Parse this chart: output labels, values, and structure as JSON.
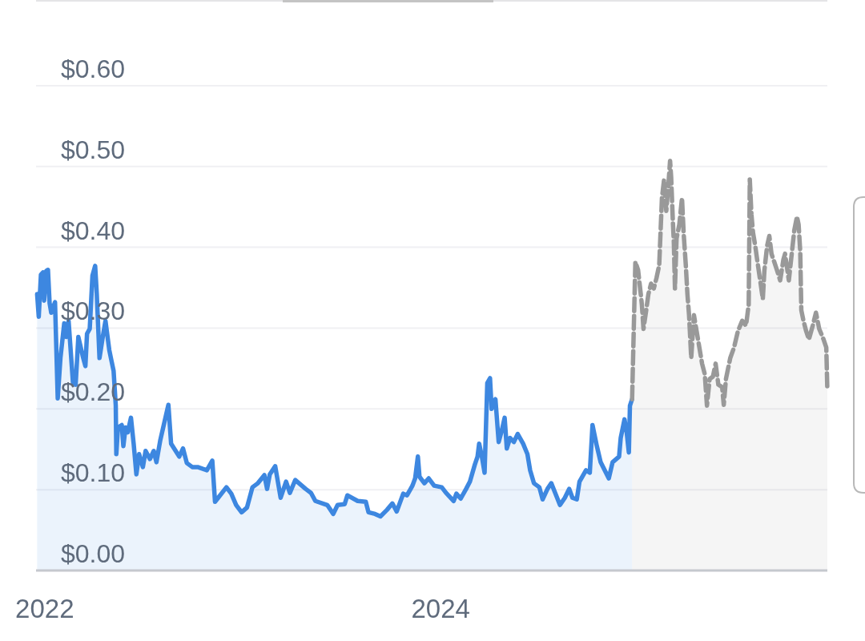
{
  "chart_data": {
    "type": "area",
    "xlim": [
      "2021-12-16",
      "2025-12-14"
    ],
    "xticks": [
      {
        "value": "2022-01-01",
        "label": "2022"
      },
      {
        "value": "2024-01-01",
        "label": "2024"
      }
    ],
    "ylim": [
      0,
      0.705
    ],
    "yticks": [
      {
        "value": 0,
        "label": "$0.00"
      },
      {
        "value": 0.1,
        "label": "$0.10"
      },
      {
        "value": 0.2,
        "label": "$0.20"
      },
      {
        "value": 0.3,
        "label": "$0.30"
      },
      {
        "value": 0.4,
        "label": "$0.40"
      },
      {
        "value": 0.5,
        "label": "$0.50"
      },
      {
        "value": 0.6,
        "label": "$0.60"
      }
    ],
    "grid": "y",
    "series": [
      {
        "color": "#3d87e0",
        "line_style": "solid",
        "x": [
          "2021-12-18",
          "2021-12-21",
          "2021-12-25",
          "2021-12-29",
          "2021-12-31",
          "2022-01-04",
          "2022-01-07",
          "2022-01-10",
          "2022-01-13",
          "2022-01-20",
          "2022-01-25",
          "2022-01-30",
          "2022-02-06",
          "2022-02-10",
          "2022-02-14",
          "2022-02-22",
          "2022-02-27",
          "2022-03-04",
          "2022-03-13",
          "2022-03-17",
          "2022-03-20",
          "2022-03-25",
          "2022-03-30",
          "2022-04-04",
          "2022-04-07",
          "2022-04-12",
          "2022-04-18",
          "2022-04-23",
          "2022-04-30",
          "2022-05-03",
          "2022-05-08",
          "2022-05-12",
          "2022-05-13",
          "2022-05-16",
          "2022-05-23",
          "2022-05-26",
          "2022-05-30",
          "2022-06-03",
          "2022-06-09",
          "2022-06-14",
          "2022-06-19",
          "2022-06-24",
          "2022-07-01",
          "2022-07-06",
          "2022-07-14",
          "2022-07-21",
          "2022-07-26",
          "2022-08-02",
          "2022-08-17",
          "2022-08-22",
          "2022-09-06",
          "2022-09-13",
          "2022-09-20",
          "2022-09-30",
          "2022-10-10",
          "2022-10-27",
          "2022-11-06",
          "2022-11-11",
          "2022-11-18",
          "2022-12-02",
          "2022-12-11",
          "2022-12-20",
          "2022-12-30",
          "2023-01-09",
          "2023-01-19",
          "2023-01-29",
          "2023-02-10",
          "2023-02-15",
          "2023-02-20",
          "2023-03-02",
          "2023-03-12",
          "2023-03-22",
          "2023-03-29",
          "2023-04-08",
          "2023-04-27",
          "2023-05-07",
          "2023-05-15",
          "2023-06-06",
          "2023-06-17",
          "2023-06-25",
          "2023-07-08",
          "2023-07-13",
          "2023-08-01",
          "2023-08-16",
          "2023-08-21",
          "2023-09-02",
          "2023-09-12",
          "2023-09-24",
          "2023-10-04",
          "2023-10-12",
          "2023-10-24",
          "2023-10-31",
          "2023-11-10",
          "2023-11-15",
          "2023-11-20",
          "2023-11-23",
          "2023-12-02",
          "2023-12-10",
          "2023-12-20",
          "2024-01-03",
          "2024-01-11",
          "2024-01-25",
          "2024-01-30",
          "2024-02-07",
          "2024-02-17",
          "2024-02-24",
          "2024-03-04",
          "2024-03-09",
          "2024-03-12",
          "2024-03-17",
          "2024-03-22",
          "2024-03-27",
          "2024-04-01",
          "2024-04-04",
          "2024-04-11",
          "2024-04-17",
          "2024-04-23",
          "2024-04-28",
          "2024-05-02",
          "2024-05-08",
          "2024-05-15",
          "2024-05-22",
          "2024-06-01",
          "2024-06-09",
          "2024-06-14",
          "2024-06-21",
          "2024-07-01",
          "2024-07-07",
          "2024-07-16",
          "2024-07-23",
          "2024-08-08",
          "2024-08-17",
          "2024-08-25",
          "2024-08-31",
          "2024-09-08",
          "2024-09-13",
          "2024-09-25",
          "2024-10-02",
          "2024-10-07",
          "2024-10-15",
          "2024-10-22",
          "2024-11-06",
          "2024-11-13",
          "2024-11-25",
          "2024-11-28",
          "2024-12-05",
          "2024-12-09",
          "2024-12-13",
          "2024-12-15",
          "2024-12-19"
        ],
        "values": [
          0.342,
          0.314,
          0.366,
          0.369,
          0.334,
          0.371,
          0.372,
          0.331,
          0.319,
          0.332,
          0.213,
          0.263,
          0.306,
          0.289,
          0.309,
          0.233,
          0.23,
          0.289,
          0.263,
          0.253,
          0.293,
          0.299,
          0.365,
          0.377,
          0.342,
          0.263,
          0.289,
          0.309,
          0.273,
          0.263,
          0.247,
          0.204,
          0.144,
          0.177,
          0.18,
          0.154,
          0.177,
          0.171,
          0.189,
          0.157,
          0.119,
          0.144,
          0.128,
          0.148,
          0.138,
          0.148,
          0.134,
          0.161,
          0.205,
          0.157,
          0.141,
          0.151,
          0.133,
          0.128,
          0.128,
          0.124,
          0.136,
          0.085,
          0.091,
          0.103,
          0.095,
          0.081,
          0.072,
          0.078,
          0.103,
          0.108,
          0.118,
          0.101,
          0.119,
          0.129,
          0.09,
          0.11,
          0.096,
          0.112,
          0.101,
          0.096,
          0.086,
          0.081,
          0.07,
          0.081,
          0.082,
          0.093,
          0.086,
          0.085,
          0.072,
          0.07,
          0.067,
          0.075,
          0.083,
          0.073,
          0.095,
          0.093,
          0.105,
          0.114,
          0.141,
          0.116,
          0.108,
          0.114,
          0.105,
          0.103,
          0.096,
          0.086,
          0.095,
          0.089,
          0.101,
          0.11,
          0.131,
          0.141,
          0.157,
          0.141,
          0.121,
          0.232,
          0.238,
          0.2,
          0.212,
          0.159,
          0.174,
          0.189,
          0.151,
          0.164,
          0.159,
          0.169,
          0.157,
          0.144,
          0.124,
          0.108,
          0.103,
          0.088,
          0.101,
          0.108,
          0.081,
          0.09,
          0.101,
          0.09,
          0.088,
          0.11,
          0.124,
          0.121,
          0.18,
          0.154,
          0.134,
          0.114,
          0.134,
          0.141,
          0.164,
          0.187,
          0.171,
          0.146,
          0.204,
          0.212
        ]
      },
      {
        "color": "#999999",
        "line_style": "dashed",
        "x": [
          "2024-12-19",
          "2024-12-20",
          "2024-12-25",
          "2024-12-30",
          "2025-01-04",
          "2025-01-06",
          "2025-01-09",
          "2025-01-14",
          "2025-01-18",
          "2025-01-23",
          "2025-01-28",
          "2025-02-02",
          "2025-02-07",
          "2025-02-12",
          "2025-02-16",
          "2025-02-20",
          "2025-02-24",
          "2025-02-27",
          "2025-03-01",
          "2025-03-04",
          "2025-03-06",
          "2025-03-08",
          "2025-03-11",
          "2025-03-16",
          "2025-03-21",
          "2025-03-24",
          "2025-03-28",
          "2025-03-31",
          "2025-04-03",
          "2025-04-07",
          "2025-04-12",
          "2025-04-17",
          "2025-04-22",
          "2025-04-27",
          "2025-05-02",
          "2025-05-06",
          "2025-05-11",
          "2025-05-17",
          "2025-05-22",
          "2025-05-27",
          "2025-06-03",
          "2025-06-06",
          "2025-06-10",
          "2025-06-18",
          "2025-06-25",
          "2025-07-02",
          "2025-07-10",
          "2025-07-17",
          "2025-07-22",
          "2025-07-24",
          "2025-07-27",
          "2025-07-30",
          "2025-08-03",
          "2025-08-08",
          "2025-08-13",
          "2025-08-17",
          "2025-08-20",
          "2025-08-25",
          "2025-08-29",
          "2025-09-02",
          "2025-09-07",
          "2025-09-12",
          "2025-09-18",
          "2025-09-24",
          "2025-09-27",
          "2025-10-04",
          "2025-10-09",
          "2025-10-14",
          "2025-10-19",
          "2025-10-22",
          "2025-10-25",
          "2025-10-27",
          "2025-10-31",
          "2025-11-05",
          "2025-11-10",
          "2025-11-17",
          "2025-11-23",
          "2025-11-29",
          "2025-12-07",
          "2025-12-12",
          "2025-12-14"
        ],
        "values": [
          0.212,
          0.24,
          0.382,
          0.372,
          0.342,
          0.329,
          0.299,
          0.322,
          0.342,
          0.355,
          0.349,
          0.362,
          0.378,
          0.461,
          0.484,
          0.445,
          0.478,
          0.507,
          0.487,
          0.435,
          0.405,
          0.349,
          0.411,
          0.428,
          0.461,
          0.418,
          0.378,
          0.342,
          0.316,
          0.263,
          0.316,
          0.296,
          0.276,
          0.256,
          0.243,
          0.204,
          0.237,
          0.24,
          0.256,
          0.23,
          0.227,
          0.205,
          0.237,
          0.263,
          0.276,
          0.296,
          0.309,
          0.303,
          0.329,
          0.484,
          0.441,
          0.418,
          0.402,
          0.378,
          0.355,
          0.336,
          0.372,
          0.402,
          0.414,
          0.392,
          0.382,
          0.372,
          0.359,
          0.385,
          0.392,
          0.359,
          0.39,
          0.421,
          0.438,
          0.428,
          0.395,
          0.322,
          0.309,
          0.296,
          0.286,
          0.303,
          0.319,
          0.299,
          0.286,
          0.276,
          0.223
        ]
      }
    ]
  }
}
